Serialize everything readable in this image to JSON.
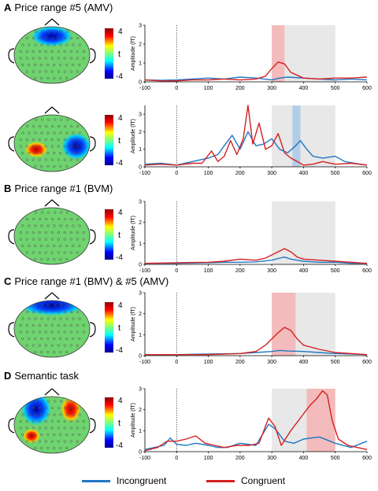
{
  "panels": [
    {
      "letter": "A",
      "title": "Price range #5 (AMV)"
    },
    {
      "letter": "B",
      "title": "Price range #1 (BVM)"
    },
    {
      "letter": "C",
      "title": "Price range #1 (BMV) & #5 (AMV)"
    },
    {
      "letter": "D",
      "title": "Semantic task"
    }
  ],
  "colorbar": {
    "max_label": "4",
    "min_label": "-4",
    "symbol": "t"
  },
  "legend": [
    {
      "label": "Incongruent",
      "color": "#1f77c4"
    },
    {
      "label": "Congruent",
      "color": "#d42020"
    }
  ],
  "colors": {
    "incongruent": "#1f77c4",
    "congruent": "#d42020",
    "shade_gray": "#e8e8e8",
    "shade_red": "#f5b3b3",
    "shade_blue": "#a8c8e8",
    "scalp": "#6fd46f"
  },
  "chart_data": [
    {
      "type": "line",
      "ylabel": "Amplitude (fT)",
      "xlim": [
        -100,
        600
      ],
      "ylim": [
        0,
        3
      ],
      "yticks": [
        0,
        1,
        2,
        3
      ],
      "xticks": [
        -100,
        0,
        100,
        200,
        300,
        400,
        500,
        600
      ],
      "gray_window": [
        300,
        500
      ],
      "highlight": {
        "range": [
          300,
          340
        ],
        "color": "red"
      },
      "series": [
        {
          "name": "Incongruent",
          "x": [
            -100,
            -50,
            0,
            50,
            100,
            150,
            200,
            250,
            300,
            325,
            350,
            400,
            450,
            500,
            550,
            600
          ],
          "y": [
            0.1,
            0.08,
            0.1,
            0.15,
            0.2,
            0.15,
            0.25,
            0.2,
            0.1,
            0.2,
            0.25,
            0.2,
            0.15,
            0.1,
            0.15,
            0.1
          ]
        },
        {
          "name": "Congruent",
          "x": [
            -100,
            -50,
            0,
            50,
            100,
            150,
            200,
            250,
            280,
            300,
            320,
            340,
            360,
            400,
            450,
            500,
            550,
            600
          ],
          "y": [
            0.1,
            0.05,
            0.05,
            0.1,
            0.1,
            0.15,
            0.1,
            0.15,
            0.3,
            0.7,
            1.05,
            0.95,
            0.5,
            0.2,
            0.15,
            0.2,
            0.2,
            0.25
          ]
        }
      ]
    },
    {
      "type": "line",
      "ylabel": "Amplitude (fT)",
      "xlim": [
        -100,
        600
      ],
      "ylim": [
        0,
        3.5
      ],
      "yticks": [
        0,
        1,
        2,
        3
      ],
      "xticks": [
        -100,
        0,
        100,
        200,
        300,
        400,
        500,
        600
      ],
      "gray_window": [
        300,
        500
      ],
      "highlight": {
        "range": [
          365,
          390
        ],
        "color": "blue"
      },
      "series": [
        {
          "name": "Incongruent",
          "x": [
            -100,
            -50,
            0,
            50,
            100,
            130,
            150,
            175,
            200,
            225,
            250,
            275,
            300,
            325,
            350,
            375,
            390,
            410,
            430,
            460,
            500,
            530,
            560,
            600
          ],
          "y": [
            0.15,
            0.2,
            0.1,
            0.3,
            0.5,
            0.7,
            1.2,
            1.8,
            1.0,
            2.0,
            1.2,
            1.3,
            1.6,
            1.0,
            0.8,
            1.2,
            1.5,
            1.0,
            0.6,
            0.5,
            0.6,
            0.3,
            0.2,
            0.1
          ]
        },
        {
          "name": "Congruent",
          "x": [
            -100,
            -50,
            0,
            50,
            80,
            110,
            130,
            150,
            170,
            190,
            210,
            225,
            240,
            260,
            280,
            300,
            320,
            340,
            360,
            380,
            400,
            430,
            460,
            500,
            550,
            600
          ],
          "y": [
            0.1,
            0.15,
            0.1,
            0.2,
            0.2,
            0.9,
            0.3,
            0.6,
            1.5,
            0.7,
            1.6,
            3.5,
            1.3,
            2.5,
            1.0,
            1.2,
            1.9,
            0.8,
            0.5,
            0.3,
            0.1,
            0.15,
            0.3,
            0.15,
            0.2,
            0.1
          ]
        }
      ]
    },
    {
      "type": "line",
      "ylabel": "Amplitude (fT)",
      "xlim": [
        -100,
        600
      ],
      "ylim": [
        0,
        3
      ],
      "yticks": [
        0,
        1,
        2,
        3
      ],
      "xticks": [
        -100,
        0,
        100,
        200,
        300,
        400,
        500,
        600
      ],
      "gray_window": [
        300,
        500
      ],
      "highlight": null,
      "series": [
        {
          "name": "Incongruent",
          "x": [
            -100,
            0,
            100,
            150,
            200,
            250,
            300,
            325,
            340,
            360,
            400,
            450,
            500,
            550,
            600
          ],
          "y": [
            0.05,
            0.05,
            0.08,
            0.1,
            0.1,
            0.12,
            0.2,
            0.3,
            0.35,
            0.25,
            0.15,
            0.1,
            0.1,
            0.05,
            0.05
          ]
        },
        {
          "name": "Congruent",
          "x": [
            -100,
            0,
            100,
            150,
            200,
            250,
            280,
            300,
            320,
            340,
            360,
            380,
            400,
            450,
            500,
            550,
            600
          ],
          "y": [
            0.05,
            0.08,
            0.1,
            0.15,
            0.25,
            0.2,
            0.3,
            0.45,
            0.6,
            0.75,
            0.6,
            0.35,
            0.25,
            0.2,
            0.15,
            0.1,
            0.05
          ]
        }
      ]
    },
    {
      "type": "line",
      "ylabel": "Amplitude (fT)",
      "xlim": [
        -100,
        600
      ],
      "ylim": [
        0,
        3
      ],
      "yticks": [
        0,
        1,
        2,
        3
      ],
      "xticks": [
        -100,
        0,
        100,
        200,
        300,
        400,
        500,
        600
      ],
      "gray_window": [
        300,
        500
      ],
      "highlight": {
        "range": [
          300,
          375
        ],
        "color": "red"
      },
      "series": [
        {
          "name": "Incongruent",
          "x": [
            -100,
            0,
            100,
            200,
            250,
            300,
            325,
            350,
            400,
            450,
            500,
            550,
            600
          ],
          "y": [
            0.05,
            0.05,
            0.08,
            0.1,
            0.15,
            0.2,
            0.25,
            0.22,
            0.2,
            0.15,
            0.1,
            0.08,
            0.05
          ]
        },
        {
          "name": "Congruent",
          "x": [
            -100,
            0,
            100,
            200,
            250,
            280,
            300,
            320,
            340,
            360,
            380,
            400,
            450,
            500,
            550,
            600
          ],
          "y": [
            0.05,
            0.05,
            0.05,
            0.1,
            0.2,
            0.5,
            0.8,
            1.1,
            1.35,
            1.2,
            0.8,
            0.5,
            0.3,
            0.15,
            0.1,
            0.05
          ]
        }
      ]
    },
    {
      "type": "line",
      "ylabel": "Amplitude (fT)",
      "xlim": [
        -100,
        600
      ],
      "ylim": [
        0,
        3
      ],
      "yticks": [
        0,
        1,
        2,
        3
      ],
      "xticks": [
        -100,
        0,
        100,
        200,
        300,
        400,
        500,
        600
      ],
      "gray_window": [
        300,
        500
      ],
      "highlight": {
        "range": [
          410,
          500
        ],
        "color": "red"
      },
      "series": [
        {
          "name": "Incongruent",
          "x": [
            -100,
            -70,
            -40,
            -20,
            0,
            30,
            60,
            100,
            130,
            160,
            200,
            250,
            290,
            310,
            340,
            370,
            400,
            450,
            500,
            550,
            600
          ],
          "y": [
            0.1,
            0.2,
            0.3,
            0.65,
            0.35,
            0.3,
            0.4,
            0.3,
            0.2,
            0.2,
            0.4,
            0.3,
            1.3,
            1.1,
            0.5,
            0.4,
            0.6,
            0.7,
            0.4,
            0.2,
            0.5
          ]
        },
        {
          "name": "Congruent",
          "x": [
            -100,
            -60,
            -30,
            0,
            30,
            60,
            90,
            120,
            150,
            190,
            230,
            260,
            290,
            310,
            330,
            360,
            400,
            420,
            440,
            460,
            475,
            490,
            510,
            540,
            570,
            600
          ],
          "y": [
            0.05,
            0.2,
            0.5,
            0.5,
            0.6,
            0.75,
            0.4,
            0.3,
            0.2,
            0.3,
            0.3,
            0.4,
            1.6,
            1.2,
            0.3,
            1.0,
            1.8,
            2.2,
            2.5,
            2.9,
            2.7,
            1.5,
            0.6,
            0.3,
            0.2,
            0.1
          ]
        }
      ]
    }
  ]
}
